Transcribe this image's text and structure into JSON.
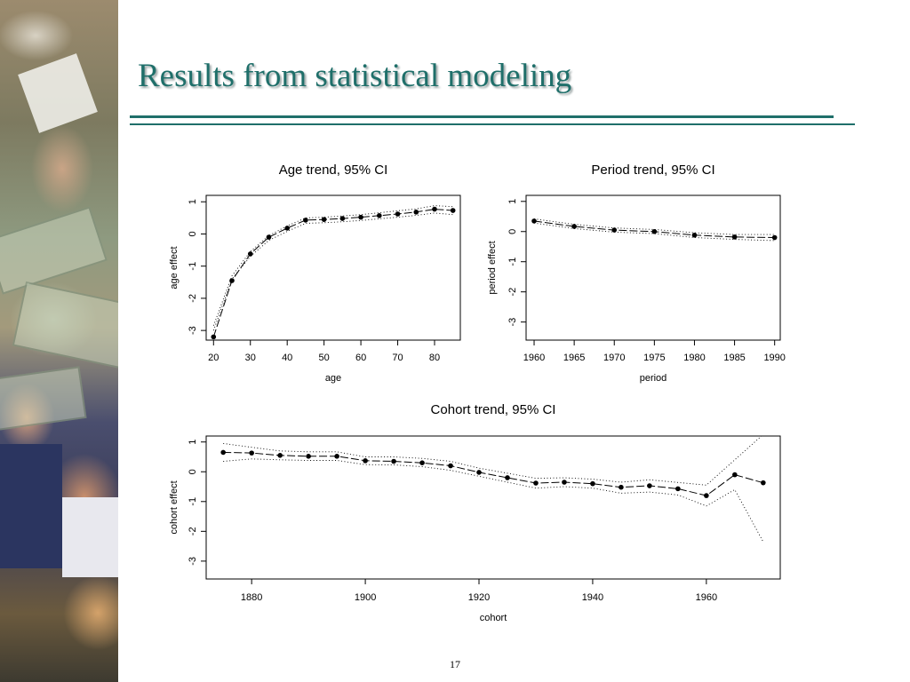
{
  "slide": {
    "title": "Results from statistical modeling",
    "page_number": "17"
  },
  "colors": {
    "title": "#1f6f6a",
    "rule": "#1f6f6a"
  },
  "chart_data": [
    {
      "id": "age",
      "type": "line",
      "title": "Age trend, 95% CI",
      "xlabel": "age",
      "ylabel": "age effect",
      "xlim": [
        18,
        87
      ],
      "ylim": [
        -3.3,
        1.2
      ],
      "xticks": [
        20,
        30,
        40,
        50,
        60,
        70,
        80
      ],
      "yticks": [
        1,
        0,
        -1,
        -2,
        -3
      ],
      "x": [
        20,
        25,
        30,
        35,
        40,
        45,
        50,
        55,
        60,
        65,
        70,
        75,
        80,
        85
      ],
      "series": [
        {
          "role": "estimate",
          "values": [
            -3.2,
            -1.45,
            -0.62,
            -0.1,
            0.18,
            0.43,
            0.45,
            0.48,
            0.52,
            0.57,
            0.62,
            0.68,
            0.77,
            0.73
          ]
        },
        {
          "role": "lower_ci",
          "values": [
            -3.0,
            -1.4,
            -0.7,
            -0.2,
            0.08,
            0.33,
            0.35,
            0.38,
            0.42,
            0.47,
            0.52,
            0.58,
            0.65,
            0.6
          ]
        },
        {
          "role": "upper_ci",
          "values": [
            -2.85,
            -1.3,
            -0.55,
            -0.05,
            0.25,
            0.5,
            0.52,
            0.56,
            0.6,
            0.66,
            0.72,
            0.78,
            0.88,
            0.85
          ]
        }
      ],
      "grid": false
    },
    {
      "id": "period",
      "type": "line",
      "title": "Period trend, 95% CI",
      "xlabel": "period",
      "ylabel": "period effect",
      "xlim": [
        1959,
        1990.7
      ],
      "ylim": [
        -3.6,
        1.2
      ],
      "xticks": [
        1960,
        1965,
        1970,
        1975,
        1980,
        1985,
        1990
      ],
      "yticks": [
        1,
        0,
        -1,
        -2,
        -3
      ],
      "x": [
        1960,
        1965,
        1970,
        1975,
        1980,
        1985,
        1990
      ],
      "series": [
        {
          "role": "estimate",
          "values": [
            0.35,
            0.17,
            0.05,
            0.0,
            -0.12,
            -0.18,
            -0.2
          ]
        },
        {
          "role": "lower_ci",
          "values": [
            0.28,
            0.1,
            -0.02,
            -0.07,
            -0.2,
            -0.26,
            -0.3
          ]
        },
        {
          "role": "upper_ci",
          "values": [
            0.42,
            0.24,
            0.12,
            0.07,
            -0.04,
            -0.1,
            -0.1
          ]
        }
      ],
      "grid": false
    },
    {
      "id": "cohort",
      "type": "line",
      "title": "Cohort trend, 95% CI",
      "xlabel": "cohort",
      "ylabel": "cohort effect",
      "xlim": [
        1872,
        1973
      ],
      "ylim": [
        -3.6,
        1.2
      ],
      "xticks": [
        1880,
        1900,
        1920,
        1940,
        1960
      ],
      "yticks": [
        1,
        0,
        -1,
        -2,
        -3
      ],
      "x": [
        1875,
        1880,
        1885,
        1890,
        1895,
        1900,
        1905,
        1910,
        1915,
        1920,
        1925,
        1930,
        1935,
        1940,
        1945,
        1950,
        1955,
        1960,
        1965,
        1970
      ],
      "series": [
        {
          "role": "estimate",
          "values": [
            0.65,
            0.63,
            0.55,
            0.52,
            0.52,
            0.37,
            0.35,
            0.3,
            0.2,
            -0.02,
            -0.2,
            -0.38,
            -0.35,
            -0.4,
            -0.52,
            -0.47,
            -0.57,
            -0.8,
            -0.1,
            -0.37
          ]
        },
        {
          "role": "lower_ci",
          "values": [
            0.35,
            0.43,
            0.4,
            0.38,
            0.38,
            0.24,
            0.23,
            0.17,
            0.05,
            -0.15,
            -0.35,
            -0.55,
            -0.5,
            -0.55,
            -0.72,
            -0.68,
            -0.78,
            -1.15,
            -0.6,
            -2.35
          ]
        },
        {
          "role": "upper_ci",
          "values": [
            0.95,
            0.82,
            0.7,
            0.67,
            0.67,
            0.5,
            0.5,
            0.45,
            0.35,
            0.12,
            -0.05,
            -0.22,
            -0.2,
            -0.25,
            -0.35,
            -0.27,
            -0.36,
            -0.45,
            0.4,
            1.25
          ]
        }
      ],
      "grid": false
    }
  ]
}
